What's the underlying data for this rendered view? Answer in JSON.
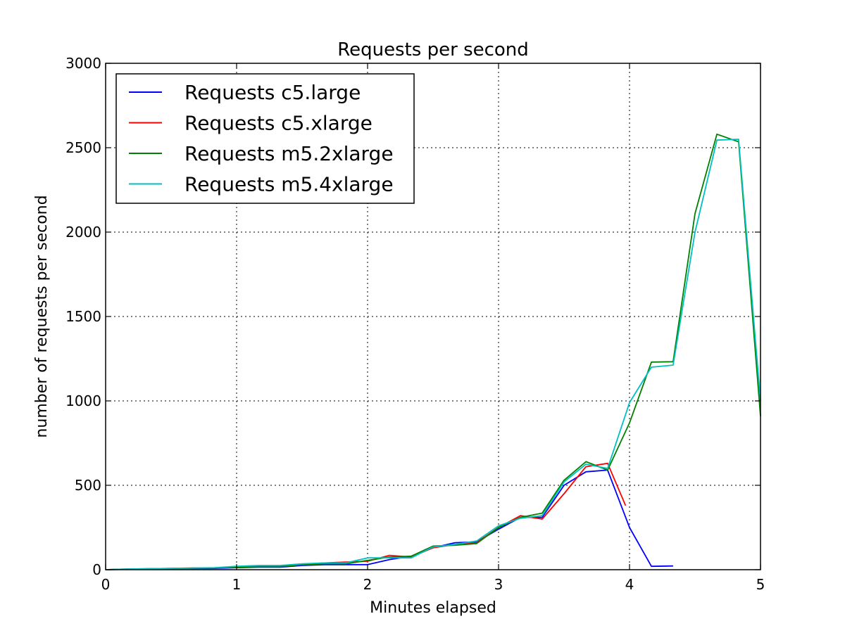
{
  "chart_data": {
    "type": "line",
    "title": "Requests per second",
    "xlabel": "Minutes elapsed",
    "ylabel": "number of requests per second",
    "xlim": [
      0,
      5
    ],
    "ylim": [
      0,
      3000
    ],
    "xticks": [
      0,
      1,
      2,
      3,
      4,
      5
    ],
    "yticks": [
      0,
      500,
      1000,
      1500,
      2000,
      2500,
      3000
    ],
    "grid": true,
    "legend_position": "top-left",
    "series": [
      {
        "name": "Requests c5.large",
        "color": "#0000ff",
        "x": [
          0,
          0.167,
          0.333,
          0.5,
          0.667,
          0.833,
          1.0,
          1.167,
          1.333,
          1.5,
          1.667,
          1.833,
          2.0,
          2.167,
          2.333,
          2.5,
          2.667,
          2.833,
          3.0,
          3.167,
          3.333,
          3.5,
          3.667,
          3.833,
          4.0,
          4.167,
          4.333
        ],
        "y": [
          0,
          3,
          5,
          6,
          7,
          8,
          12,
          15,
          15,
          25,
          30,
          30,
          30,
          60,
          80,
          130,
          160,
          165,
          240,
          310,
          310,
          500,
          580,
          590,
          250,
          20,
          22
        ]
      },
      {
        "name": "Requests c5.xlarge",
        "color": "#ff0000",
        "x": [
          0,
          0.167,
          0.333,
          0.5,
          0.667,
          0.833,
          1.0,
          1.167,
          1.333,
          1.5,
          1.667,
          1.833,
          2.0,
          2.167,
          2.333,
          2.5,
          2.667,
          2.833,
          3.0,
          3.167,
          3.333,
          3.5,
          3.667,
          3.833,
          3.97
        ],
        "y": [
          0,
          4,
          6,
          8,
          10,
          10,
          15,
          20,
          20,
          30,
          40,
          45,
          50,
          85,
          75,
          130,
          150,
          160,
          250,
          320,
          300,
          450,
          610,
          630,
          380
        ]
      },
      {
        "name": "Requests m5.2xlarge",
        "color": "#008000",
        "x": [
          0,
          0.167,
          0.333,
          0.5,
          0.667,
          0.833,
          1.0,
          1.167,
          1.333,
          1.5,
          1.667,
          1.833,
          2.0,
          2.167,
          2.333,
          2.5,
          2.667,
          2.833,
          3.0,
          3.167,
          3.333,
          3.5,
          3.667,
          3.833,
          4.0,
          4.167,
          4.333,
          4.5,
          4.667,
          4.833,
          5.0
        ],
        "y": [
          0,
          3,
          5,
          7,
          9,
          10,
          15,
          18,
          18,
          30,
          35,
          35,
          55,
          75,
          80,
          140,
          145,
          155,
          250,
          310,
          335,
          530,
          640,
          590,
          870,
          1230,
          1232,
          2110,
          2580,
          2535,
          910
        ]
      },
      {
        "name": "Requests m5.4xlarge",
        "color": "#00bfbf",
        "x": [
          0,
          0.167,
          0.333,
          0.5,
          0.667,
          0.833,
          1.0,
          1.167,
          1.333,
          1.5,
          1.667,
          1.833,
          2.0,
          2.167,
          2.333,
          2.5,
          2.667,
          2.833,
          3.0,
          3.167,
          3.333,
          3.5,
          3.667,
          3.833,
          4.0,
          4.167,
          4.333,
          4.5,
          4.667,
          4.833,
          5.0
        ],
        "y": [
          0,
          4,
          6,
          8,
          10,
          12,
          20,
          25,
          25,
          35,
          40,
          40,
          70,
          70,
          70,
          135,
          150,
          170,
          260,
          305,
          320,
          520,
          625,
          600,
          990,
          1200,
          1212,
          2000,
          2545,
          2550,
          1000
        ]
      }
    ]
  }
}
